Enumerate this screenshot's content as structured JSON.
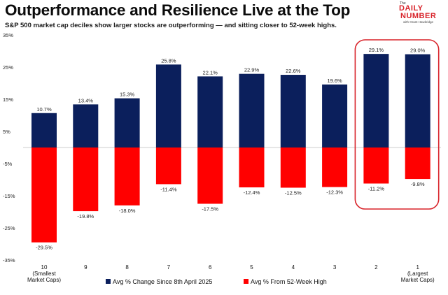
{
  "header": {
    "title": "Outperformance and Resilience Live at the Top",
    "subtitle": "S&P 500 market cap deciles show larger stocks are outperforming — and sitting closer to 52-week highs."
  },
  "logo": {
    "the": "The",
    "daily": "DAILY",
    "number": "NUMBER",
    "credit": "with Grant Hawkridge"
  },
  "colors": {
    "series1": "#0b1f5c",
    "series2": "#ff0000",
    "highlight": "#d8232a"
  },
  "chart_data": {
    "type": "bar",
    "categories": [
      [
        "10",
        "(Smallest",
        "Market Caps)"
      ],
      [
        "9"
      ],
      [
        "8"
      ],
      [
        "7"
      ],
      [
        "6"
      ],
      [
        "5"
      ],
      [
        "4"
      ],
      [
        "3"
      ],
      [
        "2"
      ],
      [
        "1",
        "(Largest",
        "Market Caps)"
      ]
    ],
    "series": [
      {
        "name": "Avg % Change Since 8th April 2025",
        "values": [
          10.7,
          13.4,
          15.3,
          25.8,
          22.1,
          22.9,
          22.6,
          19.6,
          29.1,
          29.0
        ],
        "labels": [
          "10.7%",
          "13.4%",
          "15.3%",
          "25.8%",
          "22.1%",
          "22.9%",
          "22.6%",
          "19.6%",
          "29.1%",
          "29.0%"
        ]
      },
      {
        "name": "Avg % From 52-Week High",
        "values": [
          -29.5,
          -19.8,
          -18.0,
          -11.4,
          -17.5,
          -12.4,
          -12.5,
          -12.3,
          -11.2,
          -9.8
        ],
        "labels": [
          "-29.5%",
          "-19.8%",
          "-18.0%",
          "-11.4%",
          "-17.5%",
          "-12.4%",
          "-12.5%",
          "-12.3%",
          "-11.2%",
          "-9.8%"
        ]
      }
    ],
    "yticks": [
      35,
      25,
      15,
      5,
      -5,
      -15,
      -25,
      -35
    ],
    "ytick_labels": [
      "35%",
      "25%",
      "15%",
      "5%",
      "-5%",
      "-15%",
      "-25%",
      "-35%"
    ],
    "ylim": [
      -35,
      35
    ],
    "highlighted_categories": [
      "2",
      "1"
    ],
    "legend_position": "bottom"
  }
}
